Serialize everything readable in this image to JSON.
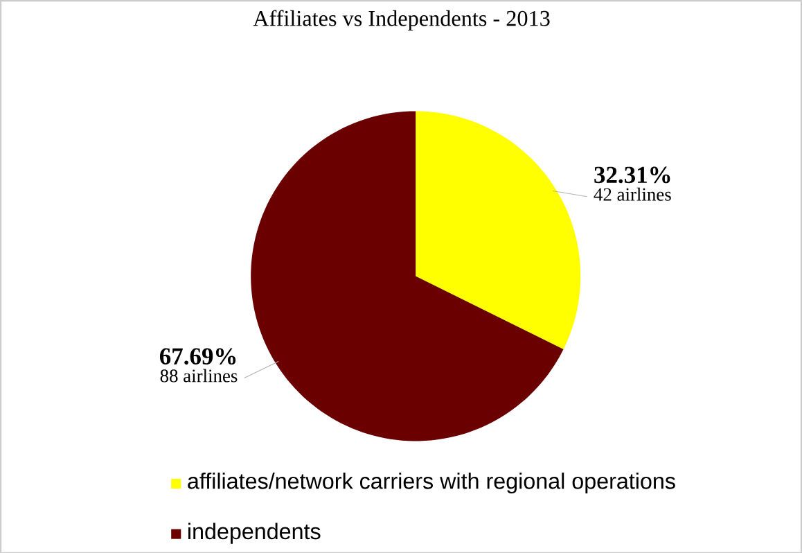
{
  "chart_data": {
    "type": "pie",
    "title": "Affiliates vs Independents - 2013",
    "categories": [
      "affiliates/network carriers with regional operations",
      "independents"
    ],
    "values": [
      32.31,
      67.69
    ],
    "colors": [
      "#ffff00",
      "#6b0000"
    ],
    "value_labels": [
      "32.31%",
      "67.69%"
    ],
    "annotations": [
      "42 airlines",
      "88 airlines"
    ],
    "legend": "bottom"
  }
}
